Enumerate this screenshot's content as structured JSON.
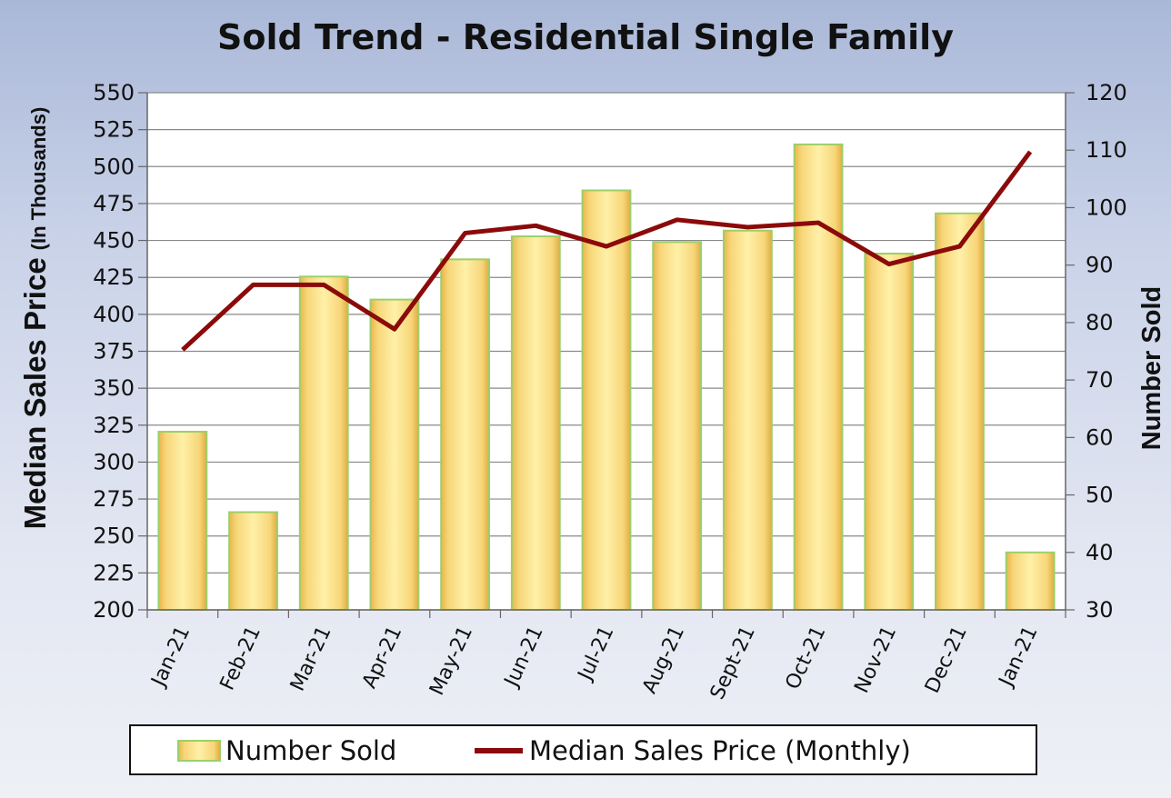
{
  "chart_data": {
    "type": "bar",
    "title": "Sold Trend - Residential Single Family",
    "categories": [
      "Jan-21",
      "Feb-21",
      "Mar-21",
      "Apr-21",
      "May-21",
      "Jun-21",
      "Jul-21",
      "Aug-21",
      "Sept-21",
      "Oct-21",
      "Nov-21",
      "Dec-21",
      "Jan-21"
    ],
    "series": [
      {
        "name": "Number Sold",
        "type": "bar",
        "axis": "right",
        "color": "#f5cf6a",
        "values": [
          61,
          47,
          88,
          84,
          91,
          95,
          103,
          94,
          96,
          111,
          92,
          99,
          40
        ]
      },
      {
        "name": "Median Sales Price (Monthly)",
        "type": "line",
        "axis": "left",
        "color": "#8b0a0a",
        "values": [
          376,
          420,
          420,
          390,
          455,
          460,
          446,
          464,
          459,
          462,
          434,
          446,
          510
        ]
      }
    ],
    "y_left": {
      "label_main": "Median Sales Price",
      "label_sub": "(In Thousands)",
      "range": [
        200,
        550
      ],
      "ticks": [
        "200",
        "225",
        "250",
        "275",
        "300",
        "325",
        "350",
        "375",
        "400",
        "425",
        "450",
        "475",
        "500",
        "525",
        "550"
      ]
    },
    "y_right": {
      "label": "Number Sold",
      "range": [
        30,
        120
      ],
      "ticks": [
        "30",
        "40",
        "50",
        "60",
        "70",
        "80",
        "90",
        "100",
        "110",
        "120"
      ]
    },
    "grid": true,
    "legend": {
      "position": "bottom",
      "items": [
        "Number Sold",
        "Median Sales Price (Monthly)"
      ]
    }
  }
}
